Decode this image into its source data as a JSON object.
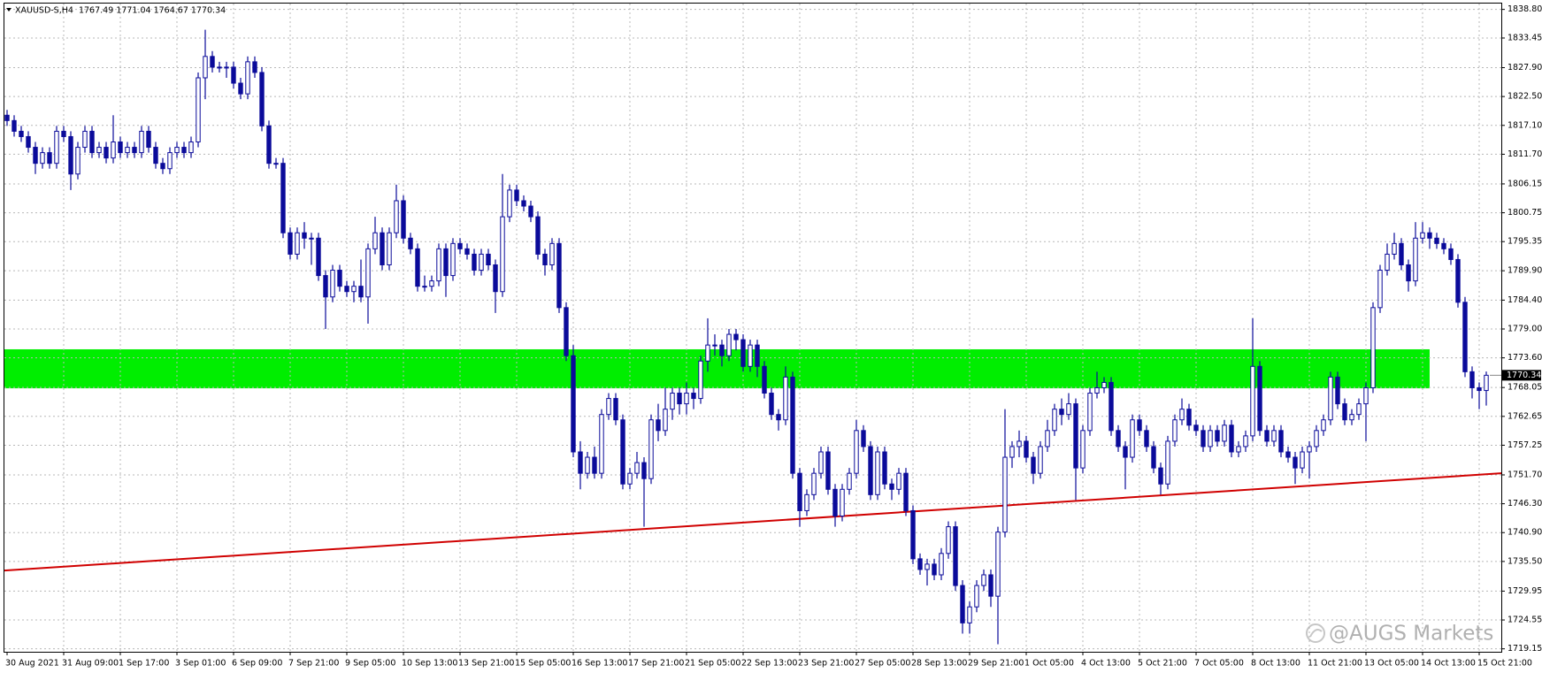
{
  "chart_data": {
    "type": "candlestick",
    "title": "XAUUSD-S,H4  1767.49 1771.04 1764.67 1770.34",
    "watermark": "@AUGS Markets",
    "categories": [
      "30 Aug 2021",
      null,
      null,
      null,
      null,
      null,
      null,
      null,
      "31 Aug 09:00",
      null,
      null,
      null,
      null,
      null,
      null,
      null,
      "1 Sep 17:00",
      null,
      null,
      null,
      null,
      null,
      null,
      null,
      "3 Sep 01:00",
      null,
      null,
      null,
      null,
      null,
      null,
      null,
      "6 Sep 09:00",
      null,
      null,
      null,
      null,
      null,
      null,
      null,
      "7 Sep 21:00",
      null,
      null,
      null,
      null,
      null,
      null,
      null,
      "9 Sep 05:00",
      null,
      null,
      null,
      null,
      null,
      null,
      null,
      "10 Sep 13:00",
      null,
      null,
      null,
      null,
      null,
      null,
      null,
      "13 Sep 21:00",
      null,
      null,
      null,
      null,
      null,
      null,
      null,
      "15 Sep 05:00",
      null,
      null,
      null,
      null,
      null,
      null,
      null,
      "16 Sep 13:00",
      null,
      null,
      null,
      null,
      null,
      null,
      null,
      "17 Sep 21:00",
      null,
      null,
      null,
      null,
      null,
      null,
      null,
      "21 Sep 05:00",
      null,
      null,
      null,
      null,
      null,
      null,
      null,
      "22 Sep 13:00",
      null,
      null,
      null,
      null,
      null,
      null,
      null,
      "23 Sep 21:00",
      null,
      null,
      null,
      null,
      null,
      null,
      null,
      "27 Sep 05:00",
      null,
      null,
      null,
      null,
      null,
      null,
      null,
      "28 Sep 13:00",
      null,
      null,
      null,
      null,
      null,
      null,
      null,
      "29 Sep 21:00",
      null,
      null,
      null,
      null,
      null,
      null,
      null,
      "1 Oct 05:00",
      null,
      null,
      null,
      null,
      null,
      null,
      null,
      "4 Oct 13:00",
      null,
      null,
      null,
      null,
      null,
      null,
      null,
      "5 Oct 21:00",
      null,
      null,
      null,
      null,
      null,
      null,
      null,
      "7 Oct 05:00",
      null,
      null,
      null,
      null,
      null,
      null,
      null,
      "8 Oct 13:00",
      null,
      null,
      null,
      null,
      null,
      null,
      null,
      "11 Oct 21:00",
      null,
      null,
      null,
      null,
      null,
      null,
      null,
      "13 Oct 05:00",
      null,
      null,
      null,
      null,
      null,
      null,
      null,
      "14 Oct 13:00",
      null,
      null,
      null,
      null,
      null,
      null,
      null,
      "15 Oct 21:00",
      null
    ],
    "open": [
      1819,
      1818,
      1816,
      1815,
      1813,
      1810,
      1812,
      1810,
      1816,
      1815,
      1808,
      1813,
      1816,
      1812,
      1813,
      1811,
      1814,
      1812,
      1813,
      1812,
      1816,
      1813,
      1810,
      1809,
      1812,
      1813,
      1812,
      1814,
      1826,
      1830,
      1828,
      1828,
      1828,
      1825,
      1823,
      1829,
      1827,
      1817,
      1810,
      1810,
      1797,
      1793,
      1797,
      1796,
      1796,
      1789,
      1785,
      1790,
      1787,
      1786,
      1787,
      1785,
      1794,
      1797,
      1791,
      1797,
      1803,
      1796,
      1794,
      1787,
      1787,
      1788,
      1794,
      1789,
      1795,
      1794,
      1793,
      1790,
      1793,
      1791,
      1786,
      1800,
      1805,
      1803,
      1802,
      1800,
      1793,
      1791,
      1795,
      1783,
      1774,
      1756,
      1752,
      1755,
      1752,
      1763,
      1766,
      1762,
      1750,
      1752,
      1754,
      1751,
      1762,
      1760,
      1764,
      1767,
      1765,
      1767,
      1766,
      1773,
      1776,
      1776,
      1774,
      1778,
      1777,
      1772,
      1776,
      1772,
      1767,
      1763,
      1762,
      1770,
      1752,
      1745,
      1748,
      1752,
      1756,
      1749,
      1744,
      1749,
      1752,
      1760,
      1757,
      1748,
      1756,
      1750,
      1749,
      1752,
      1745,
      1736,
      1734,
      1735,
      1733,
      1737,
      1742,
      1731,
      1724,
      1727,
      1731,
      1733,
      1729,
      1741,
      1755,
      1757,
      1758,
      1755,
      1752,
      1757,
      1760,
      1764,
      1763,
      1765,
      1753,
      1760,
      1767,
      1768,
      1769,
      1760,
      1757,
      1755,
      1762,
      1760,
      1757,
      1753,
      1750,
      1758,
      1762,
      1764,
      1761,
      1760,
      1757,
      1760,
      1758,
      1761,
      1756,
      1757,
      1759,
      1772,
      1760,
      1758,
      1760,
      1756,
      1755,
      1753,
      1756,
      1757,
      1760,
      1762,
      1770,
      1765,
      1762,
      1763,
      1765,
      1768,
      1783,
      1790,
      1793,
      1795,
      1791,
      1788,
      1796,
      1797,
      1796,
      1795,
      1794,
      1792,
      1784,
      1771,
      1768,
      1767.49
    ],
    "high": [
      1820,
      1819,
      1817,
      1816,
      1814,
      1813,
      1813,
      1817,
      1817,
      1816,
      1814,
      1817,
      1817,
      1814,
      1814,
      1819,
      1815,
      1814,
      1814,
      1817,
      1817,
      1814,
      1811,
      1813,
      1814,
      1814,
      1815,
      1827,
      1835,
      1831,
      1829,
      1829,
      1829,
      1826,
      1830,
      1830,
      1828,
      1818,
      1811,
      1811,
      1798,
      1798,
      1799,
      1797,
      1797,
      1790,
      1791,
      1791,
      1788,
      1788,
      1792,
      1795,
      1800,
      1798,
      1798,
      1806,
      1804,
      1797,
      1795,
      1789,
      1789,
      1795,
      1795,
      1796,
      1796,
      1795,
      1794,
      1794,
      1794,
      1792,
      1808,
      1806,
      1806,
      1804,
      1803,
      1801,
      1794,
      1796,
      1796,
      1784,
      1776,
      1758,
      1756,
      1757,
      1764,
      1767,
      1767,
      1763,
      1753,
      1756,
      1755,
      1763,
      1765,
      1768,
      1768,
      1768,
      1769,
      1768,
      1774,
      1781,
      1778,
      1777,
      1779,
      1779,
      1778,
      1777,
      1777,
      1773,
      1768,
      1764,
      1772,
      1771,
      1753,
      1749,
      1753,
      1757,
      1757,
      1750,
      1750,
      1753,
      1762,
      1761,
      1758,
      1757,
      1757,
      1751,
      1753,
      1753,
      1746,
      1737,
      1736,
      1736,
      1738,
      1743,
      1743,
      1732,
      1728,
      1732,
      1734,
      1734,
      1742,
      1764,
      1758,
      1760,
      1759,
      1756,
      1758,
      1762,
      1765,
      1766,
      1767,
      1766,
      1761,
      1768,
      1771,
      1770,
      1770,
      1761,
      1758,
      1763,
      1763,
      1761,
      1758,
      1754,
      1759,
      1763,
      1766,
      1765,
      1762,
      1761,
      1761,
      1761,
      1762,
      1762,
      1758,
      1760,
      1781,
      1773,
      1761,
      1761,
      1761,
      1757,
      1756,
      1757,
      1758,
      1761,
      1763,
      1771,
      1771,
      1766,
      1764,
      1766,
      1769,
      1784,
      1791,
      1795,
      1797,
      1796,
      1792,
      1799,
      1799,
      1798,
      1797,
      1796,
      1795,
      1793,
      1785,
      1772,
      1769,
      1771.04
    ],
    "low": [
      1817,
      1815,
      1814,
      1812,
      1808,
      1809,
      1809,
      1809,
      1814,
      1805,
      1807,
      1812,
      1811,
      1811,
      1810,
      1810,
      1811,
      1811,
      1811,
      1811,
      1812,
      1809,
      1808,
      1808,
      1811,
      1811,
      1811,
      1813,
      1822,
      1827,
      1827,
      1826,
      1824,
      1822,
      1822,
      1826,
      1816,
      1809,
      1809,
      1796,
      1792,
      1792,
      1794,
      1791,
      1788,
      1779,
      1784,
      1786,
      1785,
      1784,
      1784,
      1780,
      1793,
      1790,
      1790,
      1796,
      1795,
      1793,
      1786,
      1786,
      1786,
      1787,
      1785,
      1788,
      1793,
      1792,
      1789,
      1789,
      1790,
      1782,
      1785,
      1799,
      1802,
      1801,
      1799,
      1792,
      1789,
      1790,
      1782,
      1773,
      1755,
      1749,
      1751,
      1751,
      1751,
      1762,
      1761,
      1749,
      1749,
      1751,
      1742,
      1750,
      1758,
      1759,
      1762,
      1763,
      1763,
      1764,
      1765,
      1771,
      1774,
      1772,
      1773,
      1775,
      1771,
      1771,
      1770,
      1766,
      1762,
      1760,
      1761,
      1751,
      1742,
      1744,
      1747,
      1751,
      1748,
      1742,
      1743,
      1748,
      1751,
      1756,
      1747,
      1747,
      1749,
      1747,
      1748,
      1744,
      1735,
      1733,
      1731,
      1732,
      1732,
      1736,
      1730,
      1722,
      1722,
      1726,
      1730,
      1727,
      1720,
      1740,
      1753,
      1755,
      1754,
      1750,
      1751,
      1756,
      1759,
      1761,
      1762,
      1747,
      1752,
      1759,
      1766,
      1767,
      1759,
      1756,
      1749,
      1754,
      1759,
      1756,
      1752,
      1748,
      1749,
      1757,
      1761,
      1760,
      1759,
      1756,
      1756,
      1757,
      1757,
      1755,
      1755,
      1756,
      1758,
      1759,
      1757,
      1757,
      1755,
      1754,
      1750,
      1752,
      1751,
      1756,
      1759,
      1761,
      1764,
      1761,
      1761,
      1762,
      1758,
      1767,
      1782,
      1789,
      1792,
      1790,
      1786,
      1787,
      1795,
      1794,
      1794,
      1793,
      1791,
      1783,
      1770,
      1766,
      1764,
      1764.67
    ],
    "close": [
      1818,
      1816,
      1815,
      1813,
      1810,
      1812,
      1810,
      1816,
      1815,
      1808,
      1813,
      1816,
      1812,
      1813,
      1811,
      1814,
      1812,
      1813,
      1812,
      1816,
      1813,
      1810,
      1809,
      1812,
      1813,
      1812,
      1814,
      1826,
      1830,
      1828,
      1828,
      1828,
      1825,
      1823,
      1829,
      1827,
      1817,
      1810,
      1810,
      1797,
      1793,
      1797,
      1796,
      1796,
      1789,
      1785,
      1790,
      1787,
      1786,
      1787,
      1785,
      1794,
      1797,
      1791,
      1797,
      1803,
      1796,
      1794,
      1787,
      1787,
      1788,
      1794,
      1789,
      1795,
      1794,
      1793,
      1790,
      1793,
      1791,
      1786,
      1800,
      1805,
      1803,
      1802,
      1800,
      1793,
      1791,
      1795,
      1783,
      1774,
      1756,
      1752,
      1755,
      1752,
      1763,
      1766,
      1762,
      1750,
      1752,
      1754,
      1751,
      1762,
      1760,
      1764,
      1767,
      1765,
      1767,
      1766,
      1773,
      1776,
      1776,
      1774,
      1778,
      1777,
      1772,
      1776,
      1772,
      1767,
      1763,
      1762,
      1770,
      1752,
      1745,
      1748,
      1752,
      1756,
      1749,
      1744,
      1749,
      1752,
      1760,
      1757,
      1748,
      1756,
      1750,
      1749,
      1752,
      1745,
      1736,
      1734,
      1735,
      1733,
      1737,
      1742,
      1731,
      1724,
      1727,
      1731,
      1733,
      1729,
      1741,
      1755,
      1757,
      1758,
      1755,
      1752,
      1757,
      1760,
      1764,
      1763,
      1765,
      1753,
      1760,
      1767,
      1768,
      1769,
      1760,
      1757,
      1755,
      1762,
      1760,
      1757,
      1753,
      1750,
      1758,
      1762,
      1764,
      1761,
      1760,
      1757,
      1760,
      1758,
      1761,
      1756,
      1757,
      1759,
      1772,
      1760,
      1758,
      1760,
      1756,
      1755,
      1753,
      1756,
      1757,
      1760,
      1762,
      1770,
      1765,
      1762,
      1763,
      1765,
      1768,
      1783,
      1790,
      1793,
      1795,
      1791,
      1788,
      1796,
      1797,
      1796,
      1795,
      1794,
      1792,
      1784,
      1771,
      1768,
      1767.49,
      1770.34
    ],
    "up_color": "#ffffff",
    "down_color": "#0b0b9a",
    "wick_color": "#0b0b9a",
    "ylim": [
      1718.6,
      1839.9
    ],
    "yticks": [
      {
        "value": 1838.8,
        "label": "1838.80"
      },
      1833.45,
      {
        "value": 1827.9,
        "label": "1827.90"
      },
      {
        "value": 1822.5,
        "label": "1822.50"
      },
      {
        "value": 1817.1,
        "label": "1817.10"
      },
      {
        "value": 1811.7,
        "label": "1811.70"
      },
      1806.15,
      1800.75,
      1795.35,
      {
        "value": 1789.9,
        "label": "1789.90"
      },
      {
        "value": 1784.4,
        "label": "1784.40"
      },
      {
        "value": 1779,
        "label": "1779.00"
      },
      {
        "value": 1773.6,
        "label": "1773.60"
      },
      1768.05,
      1762.65,
      1757.25,
      {
        "value": 1751.7,
        "label": "1751.70"
      },
      {
        "value": 1746.3,
        "label": "1746.30"
      },
      {
        "value": 1740.9,
        "label": "1740.90"
      },
      {
        "value": 1735.5,
        "label": "1735.50"
      },
      1729.95,
      1724.55,
      1719.15
    ],
    "grid": true,
    "last_price": 1770.34,
    "zone": {
      "from": 1767.9,
      "to": 1775.2,
      "color": "#00ee00"
    },
    "trendline": {
      "start": 1733.8,
      "end": 1752.0,
      "color": "#d00000"
    }
  }
}
